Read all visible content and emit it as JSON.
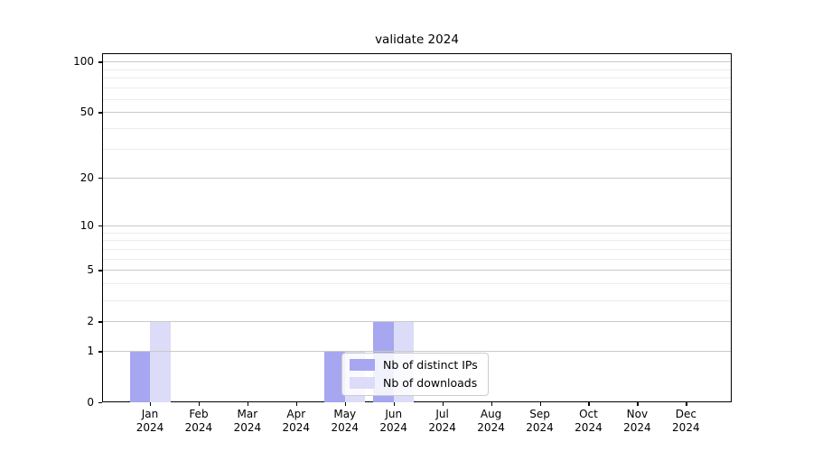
{
  "title": "validate 2024",
  "chart_data": {
    "type": "bar",
    "title": "validate 2024",
    "categories": [
      "Jan 2024",
      "Feb 2024",
      "Mar 2024",
      "Apr 2024",
      "May 2024",
      "Jun 2024",
      "Jul 2024",
      "Aug 2024",
      "Sep 2024",
      "Oct 2024",
      "Nov 2024",
      "Dec 2024"
    ],
    "series": [
      {
        "name": "Nb of distinct IPs",
        "color": "#a6a6f1",
        "values": [
          1,
          0,
          0,
          0,
          1,
          2,
          0,
          0,
          0,
          0,
          0,
          0
        ]
      },
      {
        "name": "Nb of downloads",
        "color": "#dcdcf8",
        "values": [
          2,
          0,
          0,
          0,
          1,
          2,
          0,
          0,
          0,
          0,
          0,
          0
        ]
      }
    ],
    "xlabel": "",
    "ylabel": "",
    "yscale": "log(1+y)",
    "ylim": [
      0,
      112
    ],
    "y_major_ticks": [
      0,
      1,
      2,
      5,
      10,
      20,
      50,
      100
    ],
    "y_minor_ticks": [
      3,
      4,
      6,
      7,
      8,
      9,
      30,
      40,
      60,
      70,
      80,
      90
    ],
    "grid": "on",
    "legend_position": "lower center"
  },
  "colors": {
    "bar_distinct_ips": "#a6a6f1",
    "bar_downloads": "#dcdcf8",
    "major_grid": "#c9c9c9",
    "minor_grid": "#ececec",
    "spine": "#000000",
    "legend_border": "#cccccc",
    "background": "#ffffff"
  }
}
